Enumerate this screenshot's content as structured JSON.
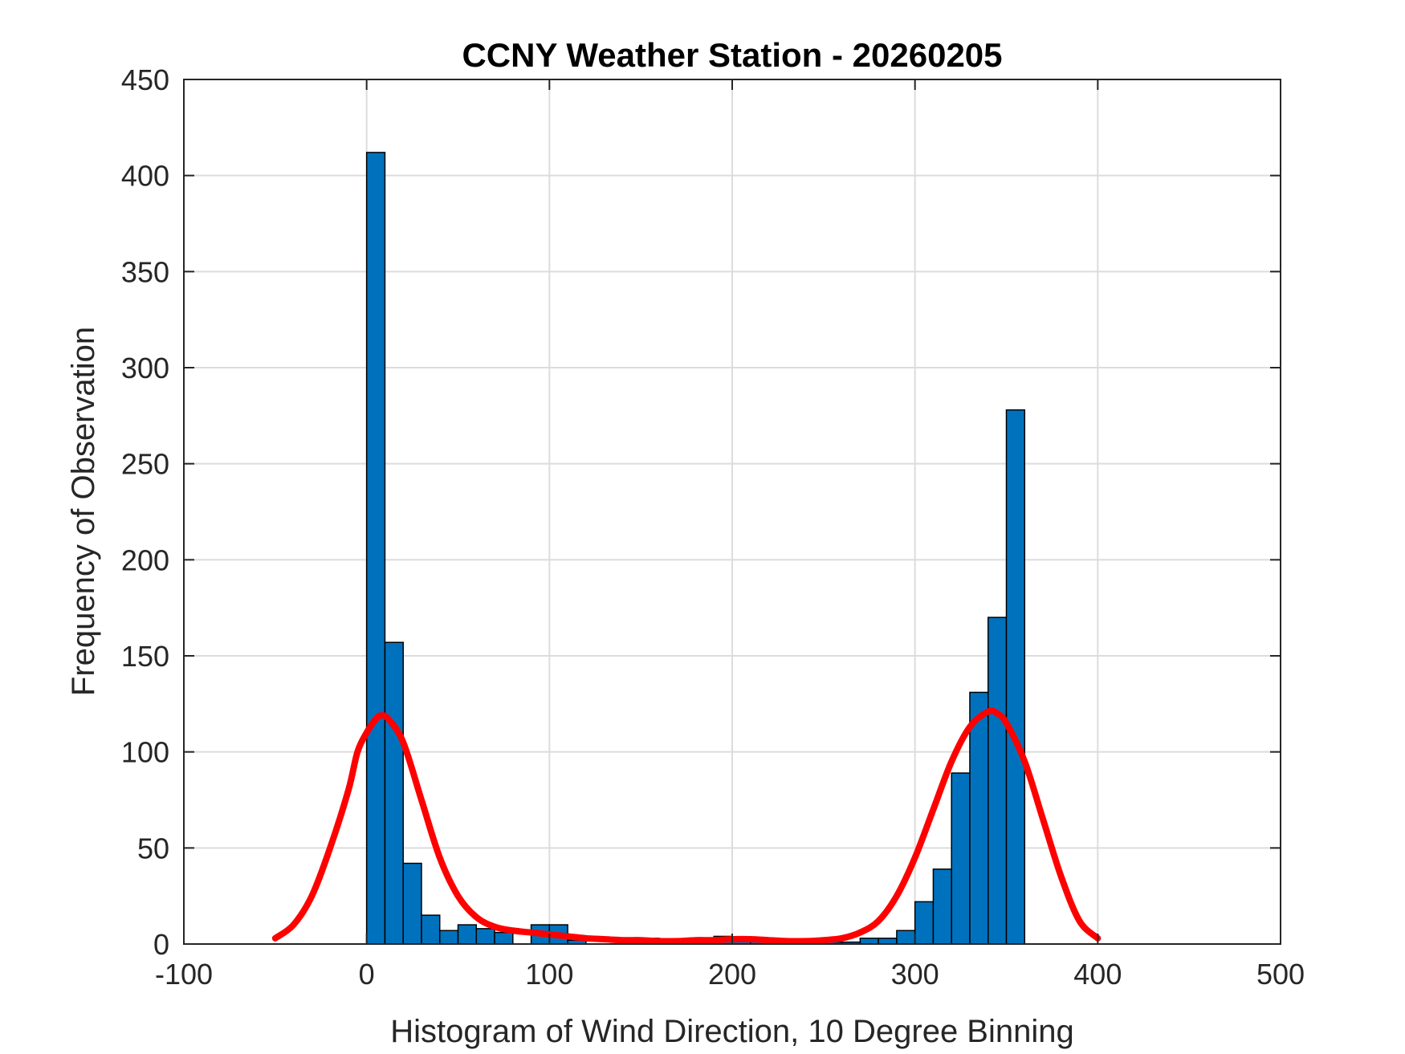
{
  "chart_data": {
    "type": "bar",
    "title": "CCNY Weather Station - 20260205",
    "xlabel": "Histogram of Wind Direction, 10 Degree Binning",
    "ylabel": "Frequency of Observation",
    "xlim": [
      -100,
      500
    ],
    "ylim": [
      0,
      450
    ],
    "xticks": [
      -100,
      0,
      100,
      200,
      300,
      400,
      500
    ],
    "yticks": [
      0,
      50,
      100,
      150,
      200,
      250,
      300,
      350,
      400,
      450
    ],
    "grid": true,
    "bin_width": 10,
    "bar_color": "#0072BD",
    "bins": [
      {
        "start": 0,
        "count": 412
      },
      {
        "start": 10,
        "count": 157
      },
      {
        "start": 20,
        "count": 42
      },
      {
        "start": 30,
        "count": 15
      },
      {
        "start": 40,
        "count": 7
      },
      {
        "start": 50,
        "count": 10
      },
      {
        "start": 60,
        "count": 8
      },
      {
        "start": 70,
        "count": 6
      },
      {
        "start": 80,
        "count": 0
      },
      {
        "start": 90,
        "count": 10
      },
      {
        "start": 100,
        "count": 10
      },
      {
        "start": 110,
        "count": 2
      },
      {
        "start": 120,
        "count": 0
      },
      {
        "start": 130,
        "count": 0
      },
      {
        "start": 140,
        "count": 0
      },
      {
        "start": 150,
        "count": 3
      },
      {
        "start": 160,
        "count": 1
      },
      {
        "start": 170,
        "count": 1
      },
      {
        "start": 180,
        "count": 2
      },
      {
        "start": 190,
        "count": 4
      },
      {
        "start": 200,
        "count": 3
      },
      {
        "start": 210,
        "count": 2
      },
      {
        "start": 220,
        "count": 2
      },
      {
        "start": 230,
        "count": 1
      },
      {
        "start": 240,
        "count": 1
      },
      {
        "start": 250,
        "count": 1
      },
      {
        "start": 260,
        "count": 1
      },
      {
        "start": 270,
        "count": 3
      },
      {
        "start": 280,
        "count": 3
      },
      {
        "start": 290,
        "count": 7
      },
      {
        "start": 300,
        "count": 22
      },
      {
        "start": 310,
        "count": 39
      },
      {
        "start": 320,
        "count": 89
      },
      {
        "start": 330,
        "count": 131
      },
      {
        "start": 340,
        "count": 170
      },
      {
        "start": 350,
        "count": 278
      }
    ],
    "fit_curve": {
      "color": "#FF0000",
      "points": [
        [
          -50,
          3
        ],
        [
          -40,
          10
        ],
        [
          -30,
          25
        ],
        [
          -20,
          50
        ],
        [
          -10,
          80
        ],
        [
          -5,
          100
        ],
        [
          0,
          110
        ],
        [
          5,
          117
        ],
        [
          8,
          119
        ],
        [
          12,
          117
        ],
        [
          20,
          105
        ],
        [
          30,
          75
        ],
        [
          40,
          45
        ],
        [
          50,
          25
        ],
        [
          60,
          14
        ],
        [
          70,
          9
        ],
        [
          80,
          7
        ],
        [
          90,
          6
        ],
        [
          100,
          5
        ],
        [
          110,
          4
        ],
        [
          120,
          3
        ],
        [
          130,
          2.5
        ],
        [
          140,
          2
        ],
        [
          150,
          2
        ],
        [
          160,
          1.5
        ],
        [
          170,
          1.5
        ],
        [
          180,
          2
        ],
        [
          190,
          2
        ],
        [
          200,
          2.5
        ],
        [
          210,
          2.5
        ],
        [
          220,
          2
        ],
        [
          230,
          1.5
        ],
        [
          240,
          1.5
        ],
        [
          250,
          2
        ],
        [
          260,
          3
        ],
        [
          270,
          6
        ],
        [
          280,
          12
        ],
        [
          290,
          25
        ],
        [
          300,
          45
        ],
        [
          310,
          70
        ],
        [
          320,
          95
        ],
        [
          330,
          113
        ],
        [
          340,
          121
        ],
        [
          345,
          120
        ],
        [
          350,
          115
        ],
        [
          360,
          95
        ],
        [
          370,
          65
        ],
        [
          380,
          35
        ],
        [
          390,
          12
        ],
        [
          400,
          3
        ]
      ]
    }
  }
}
